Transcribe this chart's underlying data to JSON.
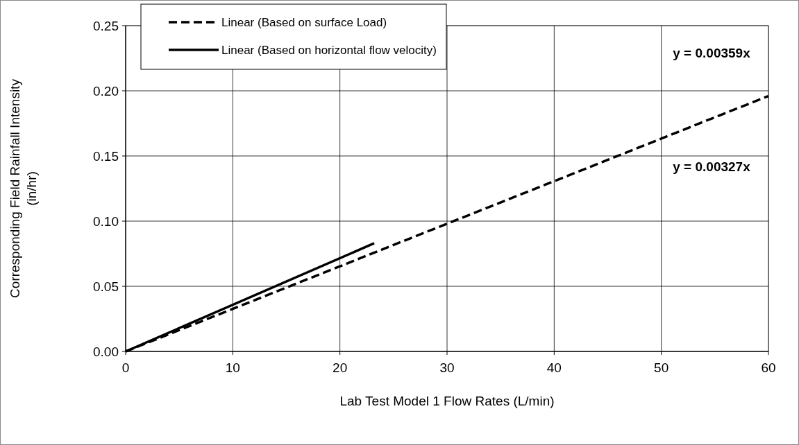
{
  "chart_data": {
    "type": "line",
    "xlabel": "Lab Test Model 1 Flow Rates (L/min)",
    "ylabel": "Corresponding Field Rainfall Intensity (in/hr)",
    "xlim": [
      0,
      60
    ],
    "xticks": [
      0,
      10,
      20,
      30,
      40,
      50,
      60
    ],
    "ylim": [
      0,
      0.25
    ],
    "yticks": [
      {
        "value": 0,
        "label": "0.00"
      },
      {
        "value": 0.05,
        "label": "0.05"
      },
      {
        "value": 0.1,
        "label": "0.10"
      },
      {
        "value": 0.15,
        "label": "0.15"
      },
      {
        "value": 0.2,
        "label": "0.20"
      },
      {
        "value": 0.25,
        "label": "0.25"
      }
    ],
    "grid": true,
    "legend": "top left",
    "series": [
      {
        "name": "Linear (Based on surface Load)",
        "color": "#000000",
        "line_style": "dashed",
        "x": [
          0,
          60
        ],
        "values": [
          0,
          0.196
        ]
      },
      {
        "name": "Linear (Based on horizontal flow velocity)",
        "color": "#000000",
        "line_style": "solid",
        "x": [
          0,
          23.2
        ],
        "values": [
          0,
          0.083
        ]
      }
    ],
    "annotations": [
      "y = 0.00359x",
      "y = 0.00327x"
    ]
  }
}
